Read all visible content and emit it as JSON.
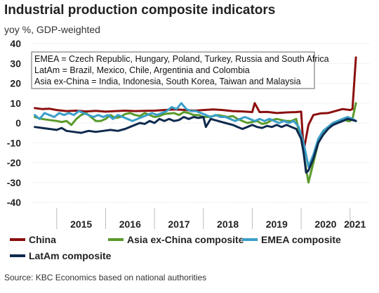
{
  "title": "Industrial production composite indicators",
  "subtitle": "yoy %, GDP-weighted",
  "source": "Source: KBC Economics based on national authorities",
  "chart_data": {
    "type": "line",
    "ylim": [
      -40,
      40
    ],
    "yticks": [
      40,
      30,
      20,
      10,
      0,
      -10,
      -20,
      -30,
      -40
    ],
    "xlim": [
      2014.5,
      2021.42
    ],
    "year_labels": [
      "2015",
      "2016",
      "2017",
      "2018",
      "2019",
      "2020",
      "2021"
    ],
    "annotations": [
      "EMEA = Czech Republic, Hungary, Poland, Turkey, Russia and South Africa",
      "LatAm = Brazil, Mexico, Chile, Argentinia and Colombia",
      "Asia ex-China = India, Indonesia, South Korea, Taiwan and Malaysia"
    ],
    "legend": [
      {
        "name": "China",
        "color": "#8b0e0e"
      },
      {
        "name": "Asia ex-China composite",
        "color": "#5a9a2c"
      },
      {
        "name": "EMEA composite",
        "color": "#3a9ec8"
      },
      {
        "name": "LatAm composite",
        "color": "#0e2a4e"
      }
    ],
    "series": [
      {
        "name": "China",
        "color": "#8b0e0e",
        "points": [
          [
            2014.55,
            7.5
          ],
          [
            2014.7,
            7
          ],
          [
            2014.85,
            7.2
          ],
          [
            2015.0,
            6.5
          ],
          [
            2015.2,
            6
          ],
          [
            2015.4,
            6.2
          ],
          [
            2015.6,
            5.8
          ],
          [
            2015.8,
            6.1
          ],
          [
            2016.0,
            5.7
          ],
          [
            2016.2,
            6
          ],
          [
            2016.4,
            6.2
          ],
          [
            2016.6,
            6
          ],
          [
            2016.8,
            6.1
          ],
          [
            2017.0,
            6.2
          ],
          [
            2017.2,
            6.5
          ],
          [
            2017.4,
            6.8
          ],
          [
            2017.6,
            6.6
          ],
          [
            2017.8,
            6.2
          ],
          [
            2018.0,
            6.5
          ],
          [
            2018.2,
            6.8
          ],
          [
            2018.4,
            6.5
          ],
          [
            2018.6,
            6
          ],
          [
            2018.8,
            5.8
          ],
          [
            2019.0,
            5.5
          ],
          [
            2019.05,
            10
          ],
          [
            2019.15,
            5.5
          ],
          [
            2019.3,
            5.6
          ],
          [
            2019.5,
            5
          ],
          [
            2019.7,
            5.3
          ],
          [
            2019.9,
            5.5
          ],
          [
            2020.0,
            5.7
          ],
          [
            2020.05,
            -14
          ],
          [
            2020.15,
            -1
          ],
          [
            2020.25,
            4
          ],
          [
            2020.4,
            4.8
          ],
          [
            2020.55,
            5
          ],
          [
            2020.7,
            6
          ],
          [
            2020.85,
            7
          ],
          [
            2021.0,
            6.5
          ],
          [
            2021.05,
            7
          ],
          [
            2021.12,
            33
          ]
        ]
      },
      {
        "name": "Asia ex-China composite",
        "color": "#5a9a2c",
        "points": [
          [
            2014.55,
            3
          ],
          [
            2014.7,
            2
          ],
          [
            2014.85,
            1.5
          ],
          [
            2015.0,
            1
          ],
          [
            2015.1,
            0.5
          ],
          [
            2015.2,
            1
          ],
          [
            2015.3,
            -1
          ],
          [
            2015.4,
            2
          ],
          [
            2015.5,
            4
          ],
          [
            2015.6,
            5
          ],
          [
            2015.7,
            3
          ],
          [
            2015.8,
            1
          ],
          [
            2015.9,
            1
          ],
          [
            2016.0,
            2
          ],
          [
            2016.1,
            4
          ],
          [
            2016.2,
            2.5
          ],
          [
            2016.3,
            3
          ],
          [
            2016.4,
            4.5
          ],
          [
            2016.5,
            5
          ],
          [
            2016.6,
            4
          ],
          [
            2016.7,
            3.5
          ],
          [
            2016.8,
            5
          ],
          [
            2016.9,
            4
          ],
          [
            2017.0,
            3
          ],
          [
            2017.1,
            3.5
          ],
          [
            2017.2,
            4.5
          ],
          [
            2017.4,
            5
          ],
          [
            2017.5,
            4
          ],
          [
            2017.6,
            5.5
          ],
          [
            2017.7,
            5
          ],
          [
            2017.8,
            4
          ],
          [
            2017.9,
            4
          ],
          [
            2018.0,
            3
          ],
          [
            2018.1,
            3
          ],
          [
            2018.2,
            3.5
          ],
          [
            2018.3,
            4
          ],
          [
            2018.4,
            3.5
          ],
          [
            2018.5,
            3
          ],
          [
            2018.6,
            3.5
          ],
          [
            2018.7,
            2
          ],
          [
            2018.8,
            1
          ],
          [
            2018.9,
            0
          ],
          [
            2019.0,
            0.5
          ],
          [
            2019.1,
            1
          ],
          [
            2019.2,
            -0.5
          ],
          [
            2019.3,
            0
          ],
          [
            2019.4,
            1.5
          ],
          [
            2019.5,
            2
          ],
          [
            2019.6,
            1.5
          ],
          [
            2019.7,
            1
          ],
          [
            2019.8,
            1
          ],
          [
            2019.9,
            2
          ],
          [
            2019.95,
            -4
          ],
          [
            2020.0,
            -8
          ],
          [
            2020.05,
            -15
          ],
          [
            2020.1,
            -23
          ],
          [
            2020.15,
            -30
          ],
          [
            2020.25,
            -20
          ],
          [
            2020.35,
            -10
          ],
          [
            2020.45,
            -5
          ],
          [
            2020.55,
            -2
          ],
          [
            2020.65,
            0
          ],
          [
            2020.75,
            1
          ],
          [
            2020.85,
            2
          ],
          [
            2020.95,
            1
          ],
          [
            2021.0,
            1
          ],
          [
            2021.05,
            2
          ],
          [
            2021.12,
            10
          ]
        ]
      },
      {
        "name": "EMEA composite",
        "color": "#3a9ec8",
        "points": [
          [
            2014.55,
            4
          ],
          [
            2014.65,
            2
          ],
          [
            2014.75,
            5
          ],
          [
            2014.85,
            4
          ],
          [
            2014.95,
            3
          ],
          [
            2015.05,
            5
          ],
          [
            2015.15,
            4
          ],
          [
            2015.25,
            5
          ],
          [
            2015.35,
            4
          ],
          [
            2015.45,
            6
          ],
          [
            2015.55,
            5
          ],
          [
            2015.65,
            4
          ],
          [
            2015.75,
            3
          ],
          [
            2015.85,
            4
          ],
          [
            2015.95,
            3
          ],
          [
            2016.05,
            4
          ],
          [
            2016.15,
            2
          ],
          [
            2016.25,
            4
          ],
          [
            2016.35,
            3
          ],
          [
            2016.45,
            2
          ],
          [
            2016.55,
            1
          ],
          [
            2016.65,
            2
          ],
          [
            2016.75,
            3
          ],
          [
            2016.85,
            4
          ],
          [
            2016.95,
            5
          ],
          [
            2017.05,
            4
          ],
          [
            2017.15,
            5
          ],
          [
            2017.25,
            6
          ],
          [
            2017.35,
            8
          ],
          [
            2017.45,
            7
          ],
          [
            2017.55,
            10
          ],
          [
            2017.65,
            7
          ],
          [
            2017.75,
            6
          ],
          [
            2017.85,
            6
          ],
          [
            2017.95,
            5
          ],
          [
            2018.05,
            4
          ],
          [
            2018.15,
            3
          ],
          [
            2018.25,
            4
          ],
          [
            2018.35,
            3
          ],
          [
            2018.45,
            3
          ],
          [
            2018.55,
            2
          ],
          [
            2018.65,
            1
          ],
          [
            2018.75,
            2
          ],
          [
            2018.85,
            3
          ],
          [
            2018.95,
            2
          ],
          [
            2019.05,
            1
          ],
          [
            2019.15,
            2
          ],
          [
            2019.25,
            1
          ],
          [
            2019.35,
            2
          ],
          [
            2019.45,
            1
          ],
          [
            2019.55,
            0
          ],
          [
            2019.65,
            1
          ],
          [
            2019.75,
            0
          ],
          [
            2019.85,
            1
          ],
          [
            2019.95,
            -2
          ],
          [
            2020.05,
            -10
          ],
          [
            2020.15,
            -22
          ],
          [
            2020.25,
            -16
          ],
          [
            2020.35,
            -8
          ],
          [
            2020.45,
            -4
          ],
          [
            2020.55,
            -2
          ],
          [
            2020.65,
            0
          ],
          [
            2020.75,
            1
          ],
          [
            2020.85,
            2
          ],
          [
            2020.95,
            3
          ],
          [
            2021.05,
            2
          ],
          [
            2021.12,
            1
          ]
        ]
      },
      {
        "name": "LatAm composite",
        "color": "#0e2a4e",
        "points": [
          [
            2014.55,
            -2
          ],
          [
            2014.7,
            -2.5
          ],
          [
            2014.85,
            -3
          ],
          [
            2015.0,
            -3.5
          ],
          [
            2015.1,
            -2.5
          ],
          [
            2015.2,
            -4
          ],
          [
            2015.35,
            -4.5
          ],
          [
            2015.5,
            -5
          ],
          [
            2015.65,
            -4
          ],
          [
            2015.8,
            -4.5
          ],
          [
            2015.95,
            -4
          ],
          [
            2016.1,
            -3.5
          ],
          [
            2016.25,
            -4
          ],
          [
            2016.4,
            -3
          ],
          [
            2016.55,
            -1.5
          ],
          [
            2016.7,
            0
          ],
          [
            2016.8,
            -0.5
          ],
          [
            2016.9,
            1
          ],
          [
            2017.0,
            0
          ],
          [
            2017.1,
            2
          ],
          [
            2017.2,
            1
          ],
          [
            2017.3,
            2
          ],
          [
            2017.4,
            1
          ],
          [
            2017.5,
            1.5
          ],
          [
            2017.6,
            3
          ],
          [
            2017.7,
            2
          ],
          [
            2017.8,
            3
          ],
          [
            2017.9,
            2.5
          ],
          [
            2018.0,
            3
          ],
          [
            2018.05,
            -2
          ],
          [
            2018.15,
            2
          ],
          [
            2018.3,
            1
          ],
          [
            2018.45,
            0
          ],
          [
            2018.6,
            -1
          ],
          [
            2018.7,
            -2
          ],
          [
            2018.8,
            -3
          ],
          [
            2018.9,
            -2
          ],
          [
            2019.0,
            -1
          ],
          [
            2019.1,
            -2
          ],
          [
            2019.2,
            -2.5
          ],
          [
            2019.3,
            -1.5
          ],
          [
            2019.4,
            -2
          ],
          [
            2019.5,
            -1
          ],
          [
            2019.6,
            -2
          ],
          [
            2019.7,
            -1
          ],
          [
            2019.8,
            -2
          ],
          [
            2019.9,
            -3
          ],
          [
            2020.0,
            -8
          ],
          [
            2020.05,
            -15
          ],
          [
            2020.1,
            -25
          ],
          [
            2020.15,
            -24
          ],
          [
            2020.25,
            -18
          ],
          [
            2020.35,
            -10
          ],
          [
            2020.45,
            -6
          ],
          [
            2020.55,
            -3
          ],
          [
            2020.65,
            -1
          ],
          [
            2020.75,
            0
          ],
          [
            2020.85,
            1
          ],
          [
            2020.95,
            2
          ],
          [
            2021.05,
            1.5
          ],
          [
            2021.12,
            1
          ]
        ]
      }
    ]
  }
}
